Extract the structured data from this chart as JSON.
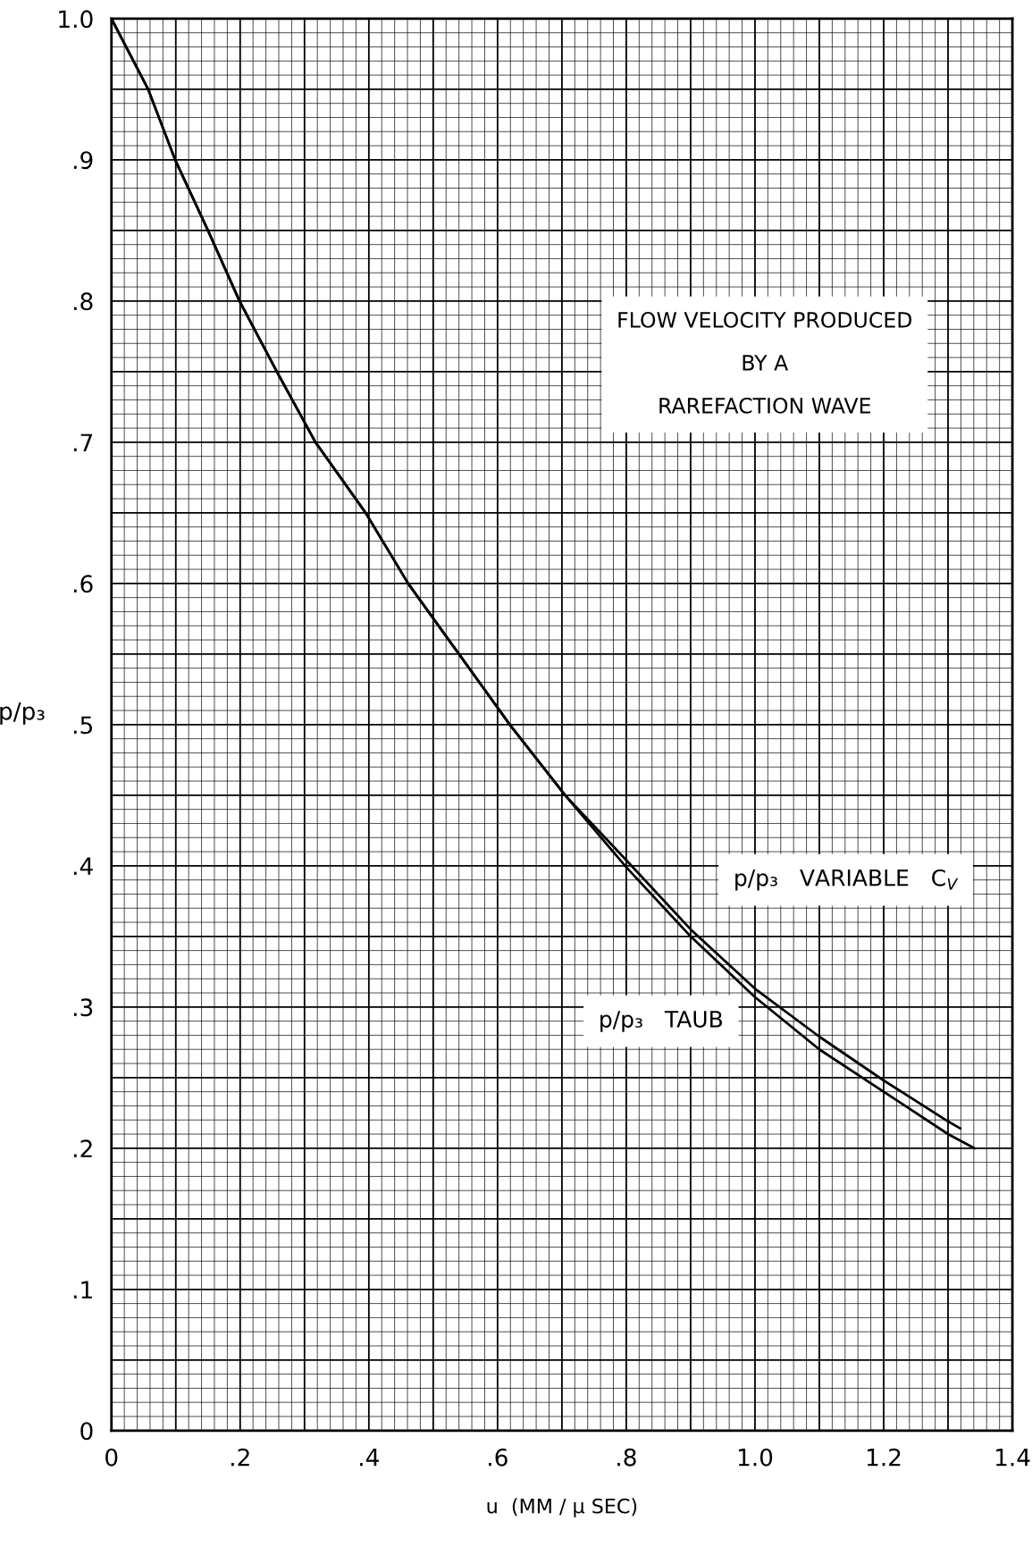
{
  "chart_data": {
    "type": "line",
    "title": "FLOW VELOCITY PRODUCED\nBY A\nRAREFACTION WAVE",
    "xlabel": "u  (MM / μ SEC)",
    "ylabel": "p/p₃",
    "series": [
      {
        "color": "#000000",
        "x": [
          0.0,
          0.057,
          0.099,
          0.15,
          0.199,
          0.257,
          0.317,
          0.395,
          0.461,
          0.54,
          0.619,
          0.705,
          0.8,
          0.9,
          1.0,
          1.1,
          1.2,
          1.3,
          1.319
        ],
        "values": [
          1.0,
          0.95,
          0.9,
          0.85,
          0.8,
          0.75,
          0.7,
          0.65,
          0.6,
          0.55,
          0.5,
          0.45,
          0.404,
          0.355,
          0.313,
          0.279,
          0.248,
          0.219,
          0.214
        ]
      },
      {
        "color": "#000000",
        "x": [
          0.0,
          0.057,
          0.099,
          0.15,
          0.199,
          0.257,
          0.317,
          0.395,
          0.461,
          0.54,
          0.619,
          0.705,
          0.8,
          0.9,
          1.0,
          1.1,
          1.2,
          1.3,
          1.341
        ],
        "values": [
          1.0,
          0.95,
          0.9,
          0.85,
          0.8,
          0.75,
          0.7,
          0.65,
          0.6,
          0.55,
          0.5,
          0.45,
          0.399,
          0.35,
          0.307,
          0.27,
          0.24,
          0.21,
          0.2
        ]
      }
    ],
    "annotations": [
      "p/p₃   VARIABLE   C$_{V}$",
      "p/p₃   TAUB"
    ],
    "xlim": [
      0,
      1.4
    ],
    "ylim": [
      0,
      1.0
    ],
    "xticks": [
      0,
      {
        "value": 0.1,
        "label": null
      },
      {
        "value": 0.2,
        "label": ".2"
      },
      {
        "value": 0.3,
        "label": null
      },
      {
        "value": 0.4,
        "label": ".4"
      },
      {
        "value": 0.5,
        "label": null
      },
      {
        "value": 0.6,
        "label": ".6"
      },
      {
        "value": 0.7,
        "label": null
      },
      {
        "value": 0.8,
        "label": ".8"
      },
      {
        "value": 0.9,
        "label": null
      },
      {
        "value": 1.0,
        "label": "1.0"
      },
      {
        "value": 1.1,
        "label": null
      },
      {
        "value": 1.2,
        "label": "1.2"
      },
      {
        "value": 1.3,
        "label": null
      },
      {
        "value": 1.4,
        "label": "1.4"
      }
    ],
    "yticks": [
      0,
      {
        "value": 0.05,
        "label": null
      },
      {
        "value": 0.1,
        "label": ".1"
      },
      {
        "value": 0.15,
        "label": null
      },
      {
        "value": 0.2,
        "label": ".2"
      },
      {
        "value": 0.25,
        "label": null
      },
      {
        "value": 0.3,
        "label": ".3"
      },
      {
        "value": 0.35,
        "label": null
      },
      {
        "value": 0.4,
        "label": ".4"
      },
      {
        "value": 0.45,
        "label": null
      },
      {
        "value": 0.5,
        "label": ".5"
      },
      {
        "value": 0.55,
        "label": null
      },
      {
        "value": 0.6,
        "label": ".6"
      },
      {
        "value": 0.65,
        "label": null
      },
      {
        "value": 0.7,
        "label": ".7"
      },
      {
        "value": 0.75,
        "label": null
      },
      {
        "value": 0.8,
        "label": ".8"
      },
      {
        "value": 0.85,
        "label": null
      },
      {
        "value": 0.9,
        "label": ".9"
      },
      {
        "value": 0.95,
        "label": null
      },
      {
        "value": 1.0,
        "label": "1.0"
      }
    ],
    "grid": true,
    "marker": "none",
    "line_style": "solid",
    "legend": false
  }
}
